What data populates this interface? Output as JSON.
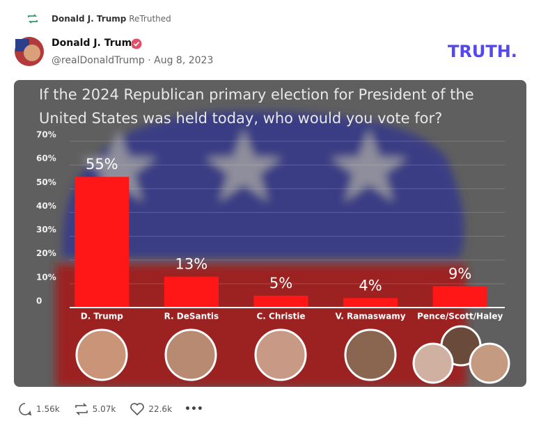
{
  "retruth": {
    "user": "Donald J. Trump",
    "label": "ReTruthed"
  },
  "author": {
    "name": "Donald J. Trump",
    "handle": "@realDonaldTrump",
    "date": "Aug 8, 2023"
  },
  "brand": "TRUTH.",
  "chart_data": {
    "type": "bar",
    "title": "If the 2024 Republican primary election for President of the United States was held today, who would you vote for?",
    "categories": [
      "D. Trump",
      "R. DeSantis",
      "C. Christie",
      "V. Ramaswamy",
      "Pence/Scott/Haley"
    ],
    "values": [
      55,
      13,
      5,
      4,
      9
    ],
    "value_labels": [
      "55%",
      "13%",
      "5%",
      "4%",
      "9%"
    ],
    "color": "#ff1717",
    "ylim": [
      0,
      70
    ],
    "yticks": [
      0,
      {
        "value": 10,
        "label": "10%"
      },
      {
        "value": 20,
        "label": "20%"
      },
      {
        "value": 30,
        "label": "30%"
      },
      {
        "value": 40,
        "label": "40%"
      },
      {
        "value": 50,
        "label": "50%"
      },
      {
        "value": 60,
        "label": "60%"
      },
      {
        "value": 70,
        "label": "70%"
      }
    ],
    "grid": true
  },
  "actions": {
    "replies": "1.56k",
    "retruths": "5.07k",
    "likes": "22.6k",
    "more": "•••"
  }
}
